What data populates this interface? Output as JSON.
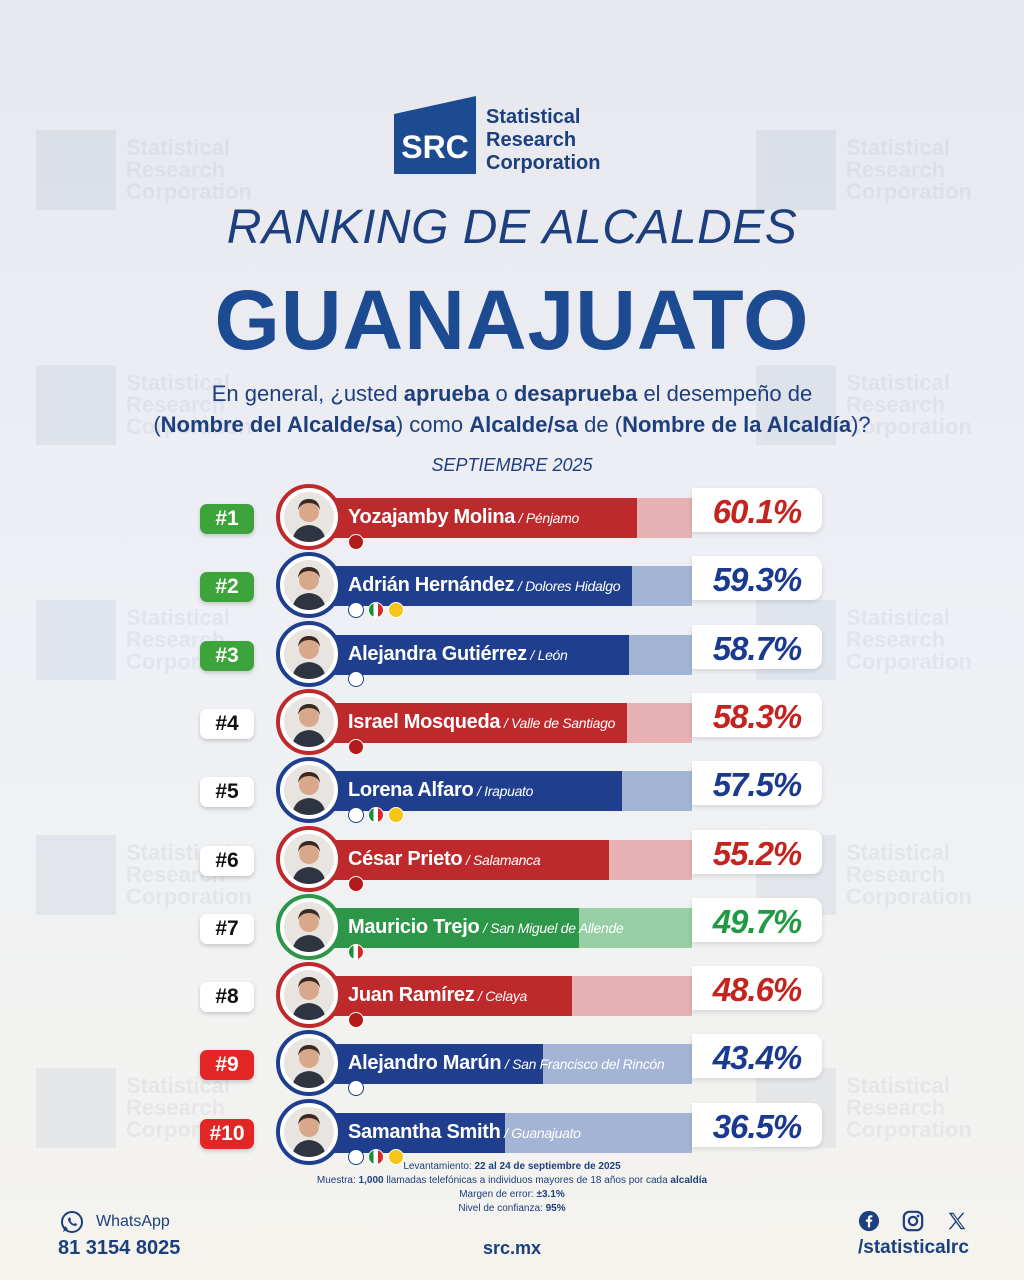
{
  "colors": {
    "brand_blue": "#1d3f7d",
    "title_blue": "#1d4b92",
    "party_red": "#be2a2c",
    "party_red_light": "#e7b0b2",
    "party_blue": "#1f3f8e",
    "party_blue_light": "#a3b4d4",
    "party_green": "#2d9648",
    "party_green_light": "#97cfa5",
    "pct_red": "#c4231e",
    "pct_blue": "#1a3a8f",
    "pct_green": "#229a44"
  },
  "logo": {
    "mark": "SRC",
    "line1": "Statistical",
    "line2": "Research",
    "line3": "Corporation"
  },
  "title": {
    "line1": "RANKING DE ALCALDES",
    "line2": "GUANAJUATO"
  },
  "question": {
    "p1": "En general, ¿usted ",
    "b1": "aprueba",
    "p2": " o ",
    "b2": "desaprueba",
    "p3": " el desempeño de",
    "p4": "(",
    "b3": "Nombre del Alcalde/sa",
    "p5": ") como ",
    "b4": "Alcalde/sa",
    "p6": " de (",
    "b5": "Nombre de la Alcaldía",
    "p7": ")?"
  },
  "period": "SEPTIEMBRE 2025",
  "chart_data": {
    "type": "bar",
    "title": "RANKING DE ALCALDES GUANAJUATO",
    "xlabel": "",
    "ylabel": "",
    "ylim": [
      0,
      100
    ],
    "categories": [
      "Yozajamby Molina",
      "Adrián Hernández",
      "Alejandra Gutiérrez",
      "Israel Mosqueda",
      "Lorena Alfaro",
      "César Prieto",
      "Mauricio Trejo",
      "Juan Ramírez",
      "Alejandro Marún",
      "Samantha Smith"
    ],
    "values": [
      60.1,
      59.3,
      58.7,
      58.3,
      57.5,
      55.2,
      49.7,
      48.6,
      43.4,
      36.5
    ],
    "rows": [
      {
        "rank": "#1",
        "rank_style": "green",
        "name": "Yozajamby Molina",
        "municipality": " / Pénjamo",
        "value": 60.1,
        "pct": "60.1%",
        "party": "morena",
        "parties": [
          "MORENA"
        ]
      },
      {
        "rank": "#2",
        "rank_style": "green",
        "name": "Adrián Hernández",
        "municipality": " / Dolores Hidalgo",
        "value": 59.3,
        "pct": "59.3%",
        "party": "pan",
        "parties": [
          "PAN",
          "PRI",
          "PRD"
        ]
      },
      {
        "rank": "#3",
        "rank_style": "green",
        "name": "Alejandra Gutiérrez",
        "municipality": " / León",
        "value": 58.7,
        "pct": "58.7%",
        "party": "pan",
        "parties": [
          "PAN"
        ]
      },
      {
        "rank": "#4",
        "rank_style": "white",
        "name": "Israel Mosqueda",
        "municipality": " / Valle de Santiago",
        "value": 58.3,
        "pct": "58.3%",
        "party": "morena",
        "parties": [
          "MORENA"
        ]
      },
      {
        "rank": "#5",
        "rank_style": "white",
        "name": "Lorena Alfaro",
        "municipality": " / Irapuato",
        "value": 57.5,
        "pct": "57.5%",
        "party": "pan",
        "parties": [
          "PAN",
          "PRI",
          "PRD"
        ]
      },
      {
        "rank": "#6",
        "rank_style": "white",
        "name": "César Prieto",
        "municipality": " / Salamanca",
        "value": 55.2,
        "pct": "55.2%",
        "party": "morena",
        "parties": [
          "MORENA"
        ]
      },
      {
        "rank": "#7",
        "rank_style": "white",
        "name": "Mauricio Trejo",
        "municipality": " / San Miguel de Allende",
        "value": 49.7,
        "pct": "49.7%",
        "party": "pri",
        "parties": [
          "PRI"
        ]
      },
      {
        "rank": "#8",
        "rank_style": "white",
        "name": "Juan Ramírez",
        "municipality": " / Celaya",
        "value": 48.6,
        "pct": "48.6%",
        "party": "morena",
        "parties": [
          "MORENA"
        ]
      },
      {
        "rank": "#9",
        "rank_style": "red",
        "name": "Alejandro Marún",
        "municipality": " / San Francisco del Rincón",
        "value": 43.4,
        "pct": "43.4%",
        "party": "pan",
        "parties": [
          "PAN"
        ]
      },
      {
        "rank": "#10",
        "rank_style": "red",
        "name": "Samantha Smith",
        "municipality": " / Guanajuato",
        "value": 36.5,
        "pct": "36.5%",
        "party": "pan",
        "parties": [
          "PAN",
          "PRI",
          "PRD"
        ]
      }
    ]
  },
  "methodology": {
    "l1_label": "Levantamiento: ",
    "l1_value": "22 al 24 de septiembre de 2025",
    "l2_label": "Muestra: ",
    "l2_value": "1,000",
    "l2_rest": " llamadas telefónicas a individuos mayores de 18 años por cada ",
    "l2_bold": "alcaldía",
    "l3_label": "Margen de error: ",
    "l3_value": "±3.1%",
    "l4_label": "Nivel de confianza: ",
    "l4_value": "95%"
  },
  "footer": {
    "whatsapp_label": "WhatsApp",
    "whatsapp_phone": "81 3154 8025",
    "website": "src.mx",
    "social_handle": "/statisticalrc",
    "icons": [
      "whatsapp-icon",
      "facebook-icon",
      "instagram-icon",
      "x-icon"
    ]
  }
}
